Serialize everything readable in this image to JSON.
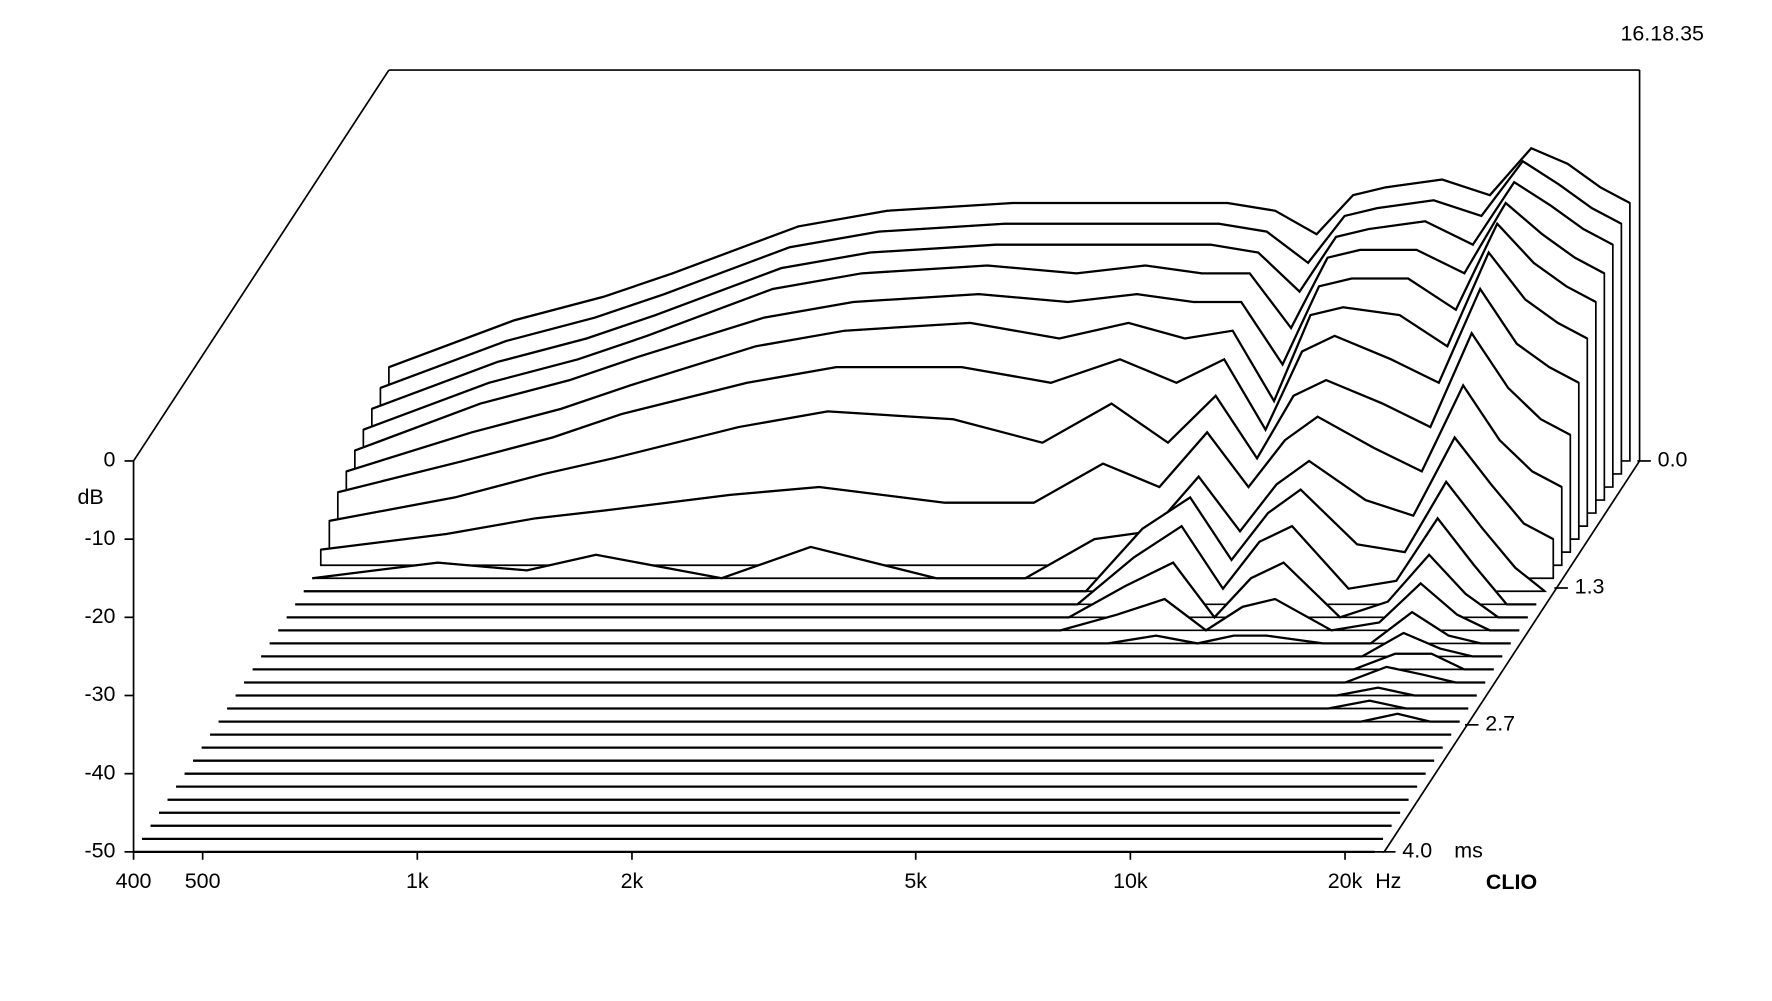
{
  "chart_data": {
    "type": "waterfall",
    "timestamp": "16.18.35",
    "brand": "CLIO",
    "y_label": "dB",
    "x_unit": "Hz",
    "z_unit": "ms",
    "color": "#000000",
    "log_x": true,
    "xlim": [
      400,
      22700
    ],
    "ylim": [
      -50,
      0
    ],
    "zlim": [
      0,
      4
    ],
    "xticks": [
      400,
      500,
      {
        "value": 1000,
        "label": "1k"
      },
      {
        "value": 2000,
        "label": "2k"
      },
      {
        "value": 5000,
        "label": "5k"
      },
      {
        "value": 10000,
        "label": "10k"
      },
      {
        "value": 20000,
        "label": "20k"
      }
    ],
    "yticks": [
      0,
      -10,
      -20,
      -30,
      -40,
      -50
    ],
    "zticks": [
      {
        "value": 0,
        "label": "0.0"
      },
      1.3,
      2.7,
      {
        "value": 4,
        "label": "4.0"
      }
    ],
    "x": [
      400,
      600,
      800,
      1000,
      1500,
      2000,
      3000,
      4000,
      5000,
      6000,
      7000,
      8000,
      9000,
      10000,
      12000,
      14000,
      16000,
      18000,
      20000,
      22000
    ],
    "z": [
      0,
      0.133,
      0.267,
      0.4,
      0.533,
      0.667,
      0.8,
      0.933,
      1.067,
      1.2,
      1.333,
      1.467,
      1.6,
      1.733,
      1.867,
      2,
      2.133,
      2.267,
      2.4,
      2.533,
      2.667,
      2.8,
      2.933,
      3.067,
      3.2,
      3.333,
      3.467,
      3.6,
      3.733,
      3.867,
      4
    ],
    "series": [
      {
        "values": [
          -38,
          -32,
          -29,
          -26,
          -20,
          -18,
          -17,
          -17,
          -17,
          -17,
          -18,
          -21,
          -16,
          -15,
          -14,
          -16,
          -10,
          -12,
          -15,
          -17
        ]
      },
      {
        "values": [
          -39,
          -33,
          -30,
          -27,
          -21,
          -19,
          -18,
          -18,
          -18,
          -18,
          -19,
          -23,
          -17,
          -16,
          -15,
          -17,
          -10,
          -13,
          -16,
          -18
        ]
      },
      {
        "values": [
          -40,
          -34,
          -31,
          -28,
          -22,
          -20,
          -19,
          -19,
          -19,
          -19,
          -20,
          -25,
          -18,
          -17,
          -16,
          -19,
          -11,
          -14,
          -17,
          -19
        ]
      },
      {
        "values": [
          -41,
          -35,
          -32,
          -29,
          -23,
          -21,
          -20,
          -21,
          -20,
          -21,
          -21,
          -28,
          -19,
          -18,
          -18,
          -21,
          -12,
          -16,
          -19,
          -21
        ]
      },
      {
        "values": [
          -42,
          -36,
          -33,
          -30,
          -25,
          -23,
          -22,
          -23,
          -22,
          -23,
          -23,
          -31,
          -21,
          -20,
          -20,
          -24,
          -13,
          -18,
          -21,
          -23
        ]
      },
      {
        "values": [
          -43,
          -38,
          -35,
          -32,
          -27,
          -25,
          -24,
          -26,
          -24,
          -26,
          -25,
          -34,
          -23,
          -22,
          -23,
          -27,
          -15,
          -21,
          -24,
          -26
        ]
      },
      {
        "values": [
          -44,
          -40,
          -37,
          -34,
          -30,
          -28,
          -28,
          -30,
          -27,
          -30,
          -27,
          -36,
          -26,
          -24,
          -27,
          -30,
          -18,
          -25,
          -28,
          -30
        ]
      },
      {
        "values": [
          -46,
          -43,
          -40,
          -38,
          -34,
          -32,
          -33,
          -36,
          -31,
          -36,
          -30,
          -38,
          -30,
          -28,
          -31,
          -34,
          -22,
          -29,
          -33,
          -35
        ]
      },
      {
        "values": [
          -48,
          -46,
          -44,
          -43,
          -41,
          -40,
          -42,
          -42,
          -37,
          -40,
          -33,
          -40,
          -34,
          -31,
          -35,
          -38,
          -27,
          -34,
          -38,
          -40
        ]
      },
      {
        "values": [
          -50,
          -48,
          -49,
          -47,
          -50,
          -46,
          -50,
          -50,
          -45,
          -44,
          -37,
          -44,
          -38,
          -35,
          -40,
          -42,
          -32,
          -38,
          -43,
          -45
        ]
      },
      {
        "values": [
          -50,
          -50,
          -50,
          -50,
          -50,
          -50,
          -50,
          -50,
          -50,
          -42,
          -38,
          -46,
          -40,
          -37,
          -44,
          -45,
          -36,
          -42,
          -47,
          -50
        ]
      },
      {
        "values": [
          -50,
          -50,
          -50,
          -50,
          -50,
          -50,
          -50,
          -50,
          -50,
          -44,
          -40,
          -48,
          -42,
          -40,
          -48,
          -47,
          -39,
          -45,
          -50,
          -50
        ]
      },
      {
        "values": [
          -50,
          -50,
          -50,
          -50,
          -50,
          -50,
          -50,
          -50,
          -50,
          -46,
          -43,
          -50,
          -45,
          -43,
          -50,
          -48,
          -42,
          -47,
          -50,
          -50
        ]
      },
      {
        "values": [
          -50,
          -50,
          -50,
          -50,
          -50,
          -50,
          -50,
          -50,
          -50,
          -48,
          -46,
          -50,
          -47,
          -46,
          -50,
          -49,
          -44,
          -48,
          -50,
          -50
        ]
      },
      {
        "values": [
          -50,
          -50,
          -50,
          -50,
          -50,
          -50,
          -50,
          -50,
          -50,
          -50,
          -49,
          -50,
          -49,
          -49,
          -50,
          -50,
          -46,
          -49,
          -50,
          -50
        ]
      },
      {
        "values": [
          -50,
          -50,
          -50,
          -50,
          -50,
          -50,
          -50,
          -50,
          -50,
          -50,
          -50,
          -50,
          -50,
          -50,
          -50,
          -50,
          -47,
          -49,
          -50,
          -50
        ]
      },
      {
        "values": [
          -50,
          -50,
          -50,
          -50,
          -50,
          -50,
          -50,
          -50,
          -50,
          -50,
          -50,
          -50,
          -50,
          -50,
          -50,
          -50,
          -48,
          -48,
          -50,
          -50
        ]
      },
      {
        "values": [
          -50,
          -50,
          -50,
          -50,
          -50,
          -50,
          -50,
          -50,
          -50,
          -50,
          -50,
          -50,
          -50,
          -50,
          -50,
          -50,
          -48,
          -49,
          -50,
          -50
        ]
      },
      {
        "values": [
          -50,
          -50,
          -50,
          -50,
          -50,
          -50,
          -50,
          -50,
          -50,
          -50,
          -50,
          -50,
          -50,
          -50,
          -50,
          -50,
          -49,
          -50,
          -50,
          -50
        ]
      },
      {
        "values": [
          -50,
          -50,
          -50,
          -50,
          -50,
          -50,
          -50,
          -50,
          -50,
          -50,
          -50,
          -50,
          -50,
          -50,
          -50,
          -50,
          -49,
          -50,
          -50,
          -50
        ]
      },
      {
        "values": [
          -50,
          -50,
          -50,
          -50,
          -50,
          -50,
          -50,
          -50,
          -50,
          -50,
          -50,
          -50,
          -50,
          -50,
          -50,
          -50,
          -50,
          -49,
          -50,
          -50
        ]
      },
      {
        "values": [
          -50,
          -50,
          -50,
          -50,
          -50,
          -50,
          -50,
          -50,
          -50,
          -50,
          -50,
          -50,
          -50,
          -50,
          -50,
          -50,
          -50,
          -50,
          -50,
          -50
        ]
      },
      {
        "values": [
          -50,
          -50,
          -50,
          -50,
          -50,
          -50,
          -50,
          -50,
          -50,
          -50,
          -50,
          -50,
          -50,
          -50,
          -50,
          -50,
          -50,
          -50,
          -50,
          -50
        ]
      },
      {
        "values": [
          -50,
          -50,
          -50,
          -50,
          -50,
          -50,
          -50,
          -50,
          -50,
          -50,
          -50,
          -50,
          -50,
          -50,
          -50,
          -50,
          -50,
          -50,
          -50,
          -50
        ]
      },
      {
        "values": [
          -50,
          -50,
          -50,
          -50,
          -50,
          -50,
          -50,
          -50,
          -50,
          -50,
          -50,
          -50,
          -50,
          -50,
          -50,
          -50,
          -50,
          -50,
          -50,
          -50
        ]
      },
      {
        "values": [
          -50,
          -50,
          -50,
          -50,
          -50,
          -50,
          -50,
          -50,
          -50,
          -50,
          -50,
          -50,
          -50,
          -50,
          -50,
          -50,
          -50,
          -50,
          -50,
          -50
        ]
      },
      {
        "values": [
          -50,
          -50,
          -50,
          -50,
          -50,
          -50,
          -50,
          -50,
          -50,
          -50,
          -50,
          -50,
          -50,
          -50,
          -50,
          -50,
          -50,
          -50,
          -50,
          -50
        ]
      },
      {
        "values": [
          -50,
          -50,
          -50,
          -50,
          -50,
          -50,
          -50,
          -50,
          -50,
          -50,
          -50,
          -50,
          -50,
          -50,
          -50,
          -50,
          -50,
          -50,
          -50,
          -50
        ]
      },
      {
        "values": [
          -50,
          -50,
          -50,
          -50,
          -50,
          -50,
          -50,
          -50,
          -50,
          -50,
          -50,
          -50,
          -50,
          -50,
          -50,
          -50,
          -50,
          -50,
          -50,
          -50
        ]
      },
      {
        "values": [
          -50,
          -50,
          -50,
          -50,
          -50,
          -50,
          -50,
          -50,
          -50,
          -50,
          -50,
          -50,
          -50,
          -50,
          -50,
          -50,
          -50,
          -50,
          -50,
          -50
        ]
      },
      {
        "values": [
          -50,
          -50,
          -50,
          -50,
          -50,
          -50,
          -50,
          -50,
          -50,
          -50,
          -50,
          -50,
          -50,
          -50,
          -50,
          -50,
          -50,
          -50,
          -50,
          -50
        ]
      }
    ]
  }
}
